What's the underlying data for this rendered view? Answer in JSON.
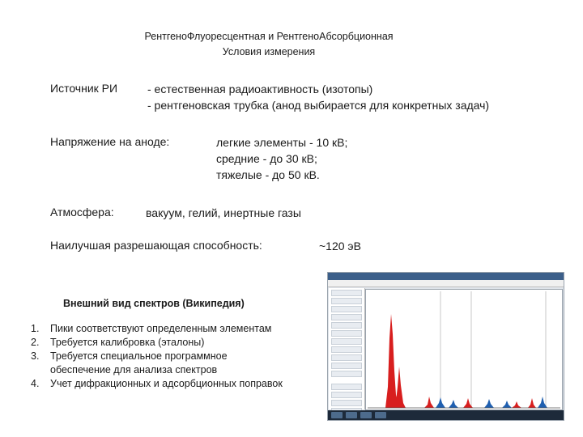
{
  "title": {
    "line1": "РентгеноФлуоресцентная и РентгеноАбсорбционная",
    "line2": "Условия измерения"
  },
  "source": {
    "label": "Источник РИ",
    "value1": "- естественная радиоактивность (изотопы)",
    "value2": "- рентгеновская трубка (анод выбирается для конкретных задач)"
  },
  "voltage": {
    "label": "Напряжение на аноде:",
    "value1": "легкие элементы - 10 кВ;",
    "value2": "средние - до 30 кВ;",
    "value3": "тяжелые - до 50 кВ."
  },
  "atmosphere": {
    "label": "Атмосфера:",
    "value": "вакуум, гелий, инертные газы"
  },
  "resolution": {
    "label": "Наилучшая разрешающая способность:",
    "value": "~120 эВ"
  },
  "spectra": {
    "caption": "Внешний вид спектров (Википедия)",
    "items": [
      {
        "num": "1.",
        "text": "Пики соответствуют определенным элементам"
      },
      {
        "num": "2.",
        "text": "Требуется калибровка (эталоны)"
      },
      {
        "num": "3.",
        "text": "Требуется специальное программное обеспечение для анализа спектров"
      },
      {
        "num": "4.",
        "text": "Учет дифракционных и адсорбционных поправок"
      }
    ]
  },
  "colors": {
    "red_peaks": "#d81e1e",
    "blue_peaks": "#1f5fb0"
  }
}
